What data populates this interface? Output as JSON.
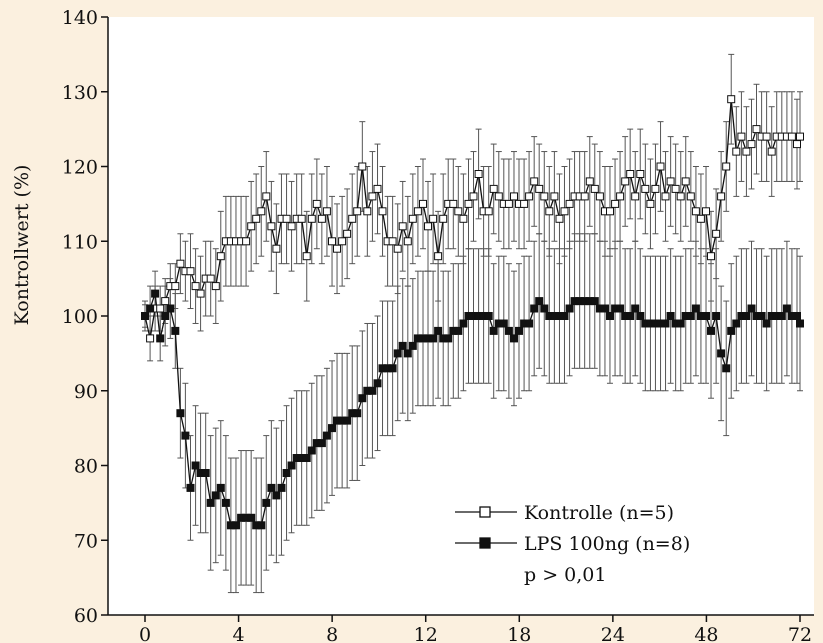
{
  "chart_data": {
    "type": "line",
    "title": "",
    "xlabel": "",
    "ylabel": "Kontrollwert (%)",
    "ylim": [
      60,
      140
    ],
    "y_ticks": [
      "60",
      "70",
      "80",
      "90",
      "100",
      "110",
      "120",
      "130",
      "140"
    ],
    "x_ticks": [
      "0",
      "4",
      "8",
      "12",
      "18",
      "24",
      "48",
      "72"
    ],
    "x_scale": "categorical ticks (non-linear hours, 0–72)",
    "grid": false,
    "legend_position": "bottom-right",
    "annotation": "p > 0,01",
    "colors": {
      "background": "#fbf0df",
      "plot": "#ffffff",
      "ink": "#111111",
      "errorbar": "#555555"
    },
    "series": [
      {
        "name": "Kontrolle (n=5)",
        "marker": "open-square",
        "x": [
          0.0,
          0.56,
          1.11,
          1.67,
          2.22,
          2.78,
          3.33,
          3.89,
          4.44,
          5.0,
          5.56,
          6.11,
          6.67,
          7.22,
          7.78,
          8.33,
          8.89,
          9.44,
          10.0,
          10.56,
          11.11,
          11.67,
          12.22,
          12.78,
          13.33,
          13.89,
          14.44,
          15.0,
          15.56,
          16.11,
          16.67,
          17.22,
          17.78,
          18.33,
          18.89,
          19.44,
          20.0,
          20.56,
          21.11,
          21.67,
          22.22,
          22.78,
          23.33,
          23.89,
          24.44,
          25.0,
          25.56,
          26.11,
          26.67,
          27.22,
          27.78,
          28.33,
          28.89,
          29.44,
          30.0,
          30.56,
          31.11,
          31.67,
          32.22,
          32.78,
          33.33,
          33.89,
          34.44,
          35.0,
          35.56,
          36.11,
          36.67,
          37.22,
          37.78,
          38.33,
          38.89,
          39.44,
          40.0,
          40.56,
          41.11,
          41.67,
          42.22,
          42.78,
          43.33,
          43.89,
          44.44,
          45.0,
          45.56,
          46.11,
          46.67,
          47.22,
          47.78,
          48.33,
          48.89,
          49.44,
          50.0,
          50.56,
          51.11,
          51.67,
          52.22,
          52.78,
          53.33,
          53.89,
          54.44,
          55.0,
          55.56,
          56.11,
          56.67,
          57.22,
          57.78,
          58.33,
          58.89,
          59.44,
          60.0,
          60.56,
          61.11,
          61.67,
          62.22,
          62.78,
          63.33,
          63.89,
          64.44,
          65.0,
          65.56,
          66.11,
          66.67,
          67.22,
          67.78,
          68.33,
          68.89,
          69.44,
          70.0,
          70.56,
          71.11,
          71.67,
          72.0
        ],
        "y": [
          100,
          97,
          101,
          101,
          102,
          104,
          104,
          107,
          106,
          106,
          104,
          103,
          105,
          105,
          104,
          108,
          110,
          110,
          110,
          110,
          110,
          112,
          113,
          114,
          116,
          112,
          109,
          113,
          113,
          112,
          113,
          113,
          108,
          113,
          115,
          113,
          114,
          110,
          109,
          110,
          111,
          113,
          114,
          120,
          114,
          116,
          117,
          114,
          110,
          110,
          109,
          112,
          110,
          113,
          114,
          115,
          112,
          113,
          108,
          113,
          115,
          115,
          114,
          113,
          115,
          116,
          119,
          114,
          114,
          117,
          116,
          115,
          115,
          116,
          115,
          115,
          116,
          118,
          117,
          116,
          114,
          116,
          113,
          114,
          115,
          116,
          116,
          116,
          118,
          117,
          116,
          114,
          114,
          115,
          116,
          118,
          119,
          116,
          119,
          117,
          115,
          117,
          120,
          116,
          118,
          117,
          116,
          118,
          116,
          114,
          113,
          114,
          108,
          111,
          116,
          120,
          129,
          122,
          124,
          122,
          123,
          125,
          124,
          124,
          122,
          124,
          124,
          124,
          124,
          123,
          124
        ],
        "err": [
          1.5,
          3,
          3,
          3,
          3,
          3,
          3,
          4,
          4,
          5,
          5,
          5,
          5,
          5,
          5,
          6,
          6,
          6,
          6,
          6,
          6,
          6,
          6,
          6,
          6,
          6,
          6,
          6,
          6,
          6,
          6,
          6,
          6,
          6,
          6,
          6,
          6,
          6,
          6,
          6,
          6,
          6,
          6,
          6,
          6,
          6,
          6,
          6,
          6,
          6,
          6,
          6,
          6,
          6,
          6,
          6,
          6,
          6,
          6,
          6,
          6,
          6,
          6,
          6,
          6,
          6,
          6,
          6,
          6,
          6,
          6,
          6,
          6,
          6,
          6,
          6,
          6,
          6,
          6,
          6,
          6,
          6,
          6,
          6,
          6,
          6,
          6,
          6,
          6,
          6,
          6,
          6,
          6,
          6,
          6,
          6,
          6,
          6,
          6,
          6,
          6,
          6,
          6,
          6,
          6,
          6,
          6,
          6,
          6,
          6,
          6,
          6,
          6,
          6,
          6,
          6,
          6,
          6,
          6,
          6,
          6,
          6,
          6,
          6,
          6,
          6,
          6,
          6,
          6,
          6,
          6
        ]
      },
      {
        "name": "LPS 100ng (n=8)",
        "marker": "filled-square",
        "x": [
          0.0,
          0.56,
          1.11,
          1.67,
          2.22,
          2.78,
          3.33,
          3.89,
          4.44,
          5.0,
          5.56,
          6.11,
          6.67,
          7.22,
          7.78,
          8.33,
          8.89,
          9.44,
          10.0,
          10.56,
          11.11,
          11.67,
          12.22,
          12.78,
          13.33,
          13.89,
          14.44,
          15.0,
          15.56,
          16.11,
          16.67,
          17.22,
          17.78,
          18.33,
          18.89,
          19.44,
          20.0,
          20.56,
          21.11,
          21.67,
          22.22,
          22.78,
          23.33,
          23.89,
          24.44,
          25.0,
          25.56,
          26.11,
          26.67,
          27.22,
          27.78,
          28.33,
          28.89,
          29.44,
          30.0,
          30.56,
          31.11,
          31.67,
          32.22,
          32.78,
          33.33,
          33.89,
          34.44,
          35.0,
          35.56,
          36.11,
          36.67,
          37.22,
          37.78,
          38.33,
          38.89,
          39.44,
          40.0,
          40.56,
          41.11,
          41.67,
          42.22,
          42.78,
          43.33,
          43.89,
          44.44,
          45.0,
          45.56,
          46.11,
          46.67,
          47.22,
          47.78,
          48.33,
          48.89,
          49.44,
          50.0,
          50.56,
          51.11,
          51.67,
          52.22,
          52.78,
          53.33,
          53.89,
          54.44,
          55.0,
          55.56,
          56.11,
          56.67,
          57.22,
          57.78,
          58.33,
          58.89,
          59.44,
          60.0,
          60.56,
          61.11,
          61.67,
          62.22,
          62.78,
          63.33,
          63.89,
          64.44,
          65.0,
          65.56,
          66.11,
          66.67,
          67.22,
          67.78,
          68.33,
          68.89,
          69.44,
          70.0,
          70.56,
          71.11,
          71.67,
          72.0
        ],
        "y": [
          100,
          101,
          103,
          97,
          100,
          101,
          98,
          87,
          84,
          77,
          80,
          79,
          79,
          75,
          76,
          77,
          75,
          72,
          72,
          73,
          73,
          73,
          72,
          72,
          75,
          77,
          76,
          77,
          79,
          80,
          81,
          81,
          81,
          82,
          83,
          83,
          84,
          85,
          86,
          86,
          86,
          87,
          87,
          89,
          90,
          90,
          91,
          93,
          93,
          93,
          95,
          96,
          95,
          96,
          97,
          97,
          97,
          97,
          98,
          97,
          97,
          98,
          98,
          99,
          100,
          100,
          100,
          100,
          100,
          98,
          99,
          99,
          98,
          97,
          98,
          99,
          99,
          101,
          102,
          101,
          100,
          100,
          100,
          100,
          101,
          102,
          102,
          102,
          102,
          102,
          101,
          101,
          100,
          101,
          101,
          100,
          100,
          101,
          100,
          99,
          99,
          99,
          99,
          99,
          100,
          99,
          99,
          100,
          100,
          101,
          100,
          100,
          98,
          100,
          95,
          93,
          98,
          99,
          100,
          100,
          101,
          100,
          100,
          99,
          100,
          100,
          100,
          101,
          100,
          100,
          99
        ],
        "err": [
          2,
          3,
          3,
          3,
          4,
          4,
          5,
          6,
          7,
          7,
          8,
          8,
          8,
          9,
          9,
          9,
          9,
          9,
          9,
          9,
          9,
          9,
          9,
          9,
          9,
          9,
          9,
          9,
          9,
          9,
          9,
          9,
          9,
          9,
          9,
          9,
          9,
          9,
          9,
          9,
          9,
          9,
          9,
          9,
          9,
          9,
          9,
          9,
          9,
          9,
          9,
          9,
          9,
          9,
          9,
          9,
          9,
          9,
          9,
          9,
          9,
          9,
          9,
          9,
          9,
          9,
          9,
          9,
          9,
          9,
          9,
          9,
          9,
          9,
          9,
          9,
          9,
          9,
          9,
          9,
          9,
          9,
          9,
          9,
          9,
          9,
          9,
          9,
          9,
          9,
          9,
          9,
          9,
          9,
          9,
          9,
          9,
          9,
          9,
          9,
          9,
          9,
          9,
          9,
          9,
          9,
          9,
          9,
          9,
          9,
          9,
          9,
          9,
          9,
          9,
          9,
          9,
          9,
          9,
          9,
          9,
          9,
          9,
          9,
          9,
          9,
          9,
          9,
          9,
          9,
          9
        ]
      }
    ]
  }
}
